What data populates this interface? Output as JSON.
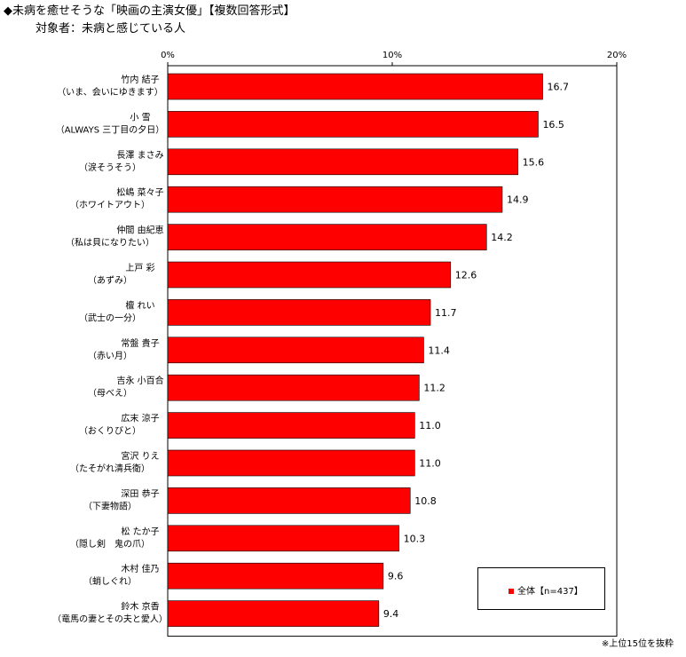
{
  "header": {
    "title": "◆未病を癒せそうな「映画の主演女優」【複数回答形式】",
    "subtitle": "対象者：未病と感じている人"
  },
  "footnote": "※上位15位を抜粋",
  "colors": {
    "bar": "#ff0000",
    "bar_stroke": "#000000"
  },
  "chart_data": {
    "type": "bar",
    "orientation": "horizontal",
    "categories": [
      {
        "name": "竹内 結子",
        "film": "（いま、会いにゆきます）"
      },
      {
        "name": "小 雪",
        "film": "（ALWAYS 三丁目の夕日）"
      },
      {
        "name": "長澤 まさみ",
        "film": "（涙そうそう）"
      },
      {
        "name": "松嶋 菜々子",
        "film": "（ホワイトアウト）"
      },
      {
        "name": "仲間 由紀恵",
        "film": "（私は貝になりたい）"
      },
      {
        "name": "上戸 彩",
        "film": "（あずみ）"
      },
      {
        "name": "檀 れい",
        "film": "（武士の一分）"
      },
      {
        "name": "常盤 貴子",
        "film": "（赤い月）"
      },
      {
        "name": "吉永 小百合",
        "film": "（母べえ）"
      },
      {
        "name": "広末 涼子",
        "film": "（おくりびと）"
      },
      {
        "name": "宮沢 りえ",
        "film": "（たそがれ清兵衛）"
      },
      {
        "name": "深田 恭子",
        "film": "（下妻物語）"
      },
      {
        "name": "松 たか子",
        "film": "（隠し剣　鬼の爪）"
      },
      {
        "name": "木村 佳乃",
        "film": "（蛸しぐれ）"
      },
      {
        "name": "鈴木 京香",
        "film": "（竜馬の妻とその夫と愛人）"
      }
    ],
    "series": [
      {
        "name": "全体【n=437】",
        "values": [
          16.7,
          16.5,
          15.6,
          14.9,
          14.2,
          12.6,
          11.7,
          11.4,
          11.2,
          11.0,
          11.0,
          10.8,
          10.3,
          9.6,
          9.4
        ],
        "labels": [
          "16.7",
          "16.5",
          "15.6",
          "14.9",
          "14.2",
          "12.6",
          "11.7",
          "11.4",
          "11.2",
          "11.0",
          "11.0",
          "10.8",
          "10.3",
          "9.6",
          "9.4"
        ]
      }
    ],
    "xlim": [
      0,
      20
    ],
    "ticks": [
      0,
      10,
      20
    ],
    "tick_labels": [
      "0%",
      "10%",
      "20%"
    ],
    "grid": false,
    "legend": "bottom-right"
  }
}
